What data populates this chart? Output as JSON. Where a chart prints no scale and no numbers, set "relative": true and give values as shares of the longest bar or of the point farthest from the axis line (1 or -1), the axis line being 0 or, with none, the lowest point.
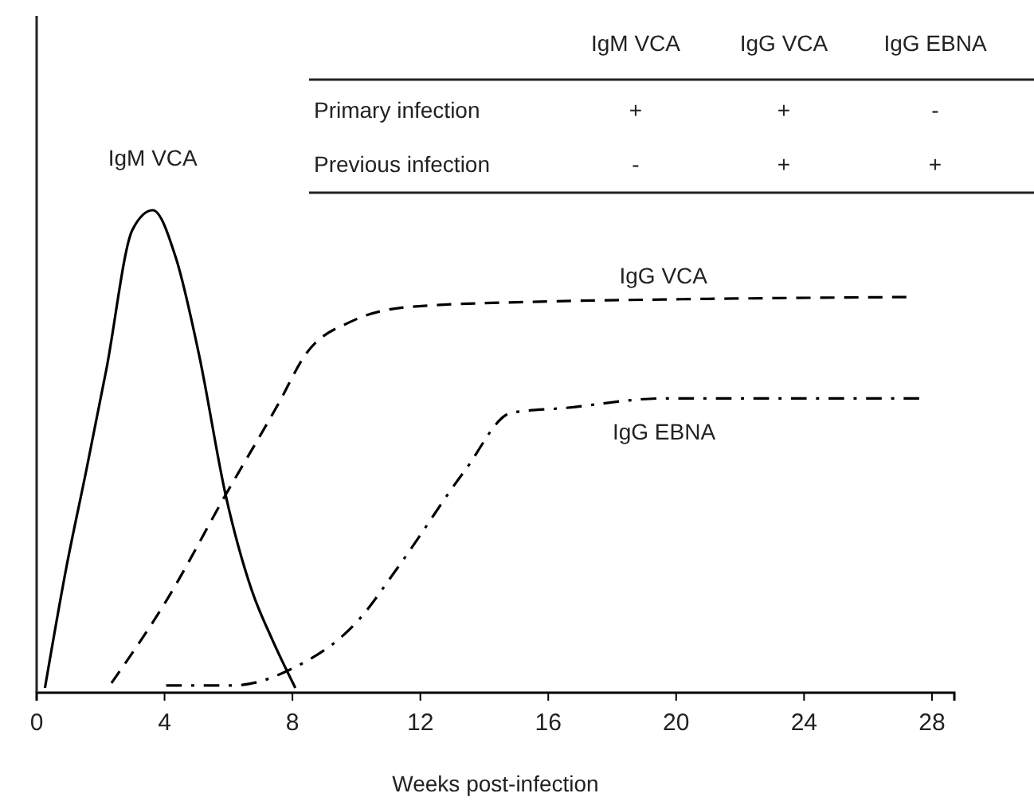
{
  "chart_data": {
    "type": "line",
    "relative": true,
    "xlabel": "Weeks post-infection",
    "xlim": [
      0,
      28.7
    ],
    "xticks": [
      0,
      4,
      8,
      12,
      16,
      20,
      24,
      28
    ],
    "grid": false,
    "marker": "none",
    "series": [
      {
        "name": "IgM VCA",
        "color": "#000000",
        "line_style": "solid",
        "x": [
          0.26,
          0.93,
          1.55,
          2.18,
          3.0,
          3.63,
          4.36,
          5.08,
          5.91,
          6.74,
          7.37,
          8.09
        ],
        "values": [
          0.01,
          0.26,
          0.46,
          0.67,
          0.96,
          1.0,
          0.9,
          0.7,
          0.41,
          0.21,
          0.11,
          0.01
        ]
      },
      {
        "name": "IgG VCA",
        "color": "#000000",
        "line_style": "dashed",
        "x": [
          2.34,
          4.05,
          5.91,
          7.57,
          8.4,
          9.86,
          11.73,
          15.46,
          19.6,
          27.2
        ],
        "values": [
          0.02,
          0.19,
          0.41,
          0.6,
          0.7,
          0.77,
          0.8,
          0.81,
          0.815,
          0.82
        ]
      },
      {
        "name": "IgG EBNA",
        "color": "#000000",
        "line_style": "dashdot",
        "x": [
          4.05,
          6.12,
          7.99,
          10.06,
          11.3,
          13.39,
          14.84,
          16.5,
          19.62,
          27.6
        ],
        "values": [
          0.015,
          0.015,
          0.05,
          0.15,
          0.26,
          0.46,
          0.58,
          0.59,
          0.61,
          0.61
        ]
      }
    ],
    "annotations": [
      "IgM VCA",
      "IgG VCA",
      "IgG EBNA",
      "Primary infection",
      "+",
      "+",
      "-",
      "Previous infection",
      "-",
      "+",
      "+"
    ]
  }
}
